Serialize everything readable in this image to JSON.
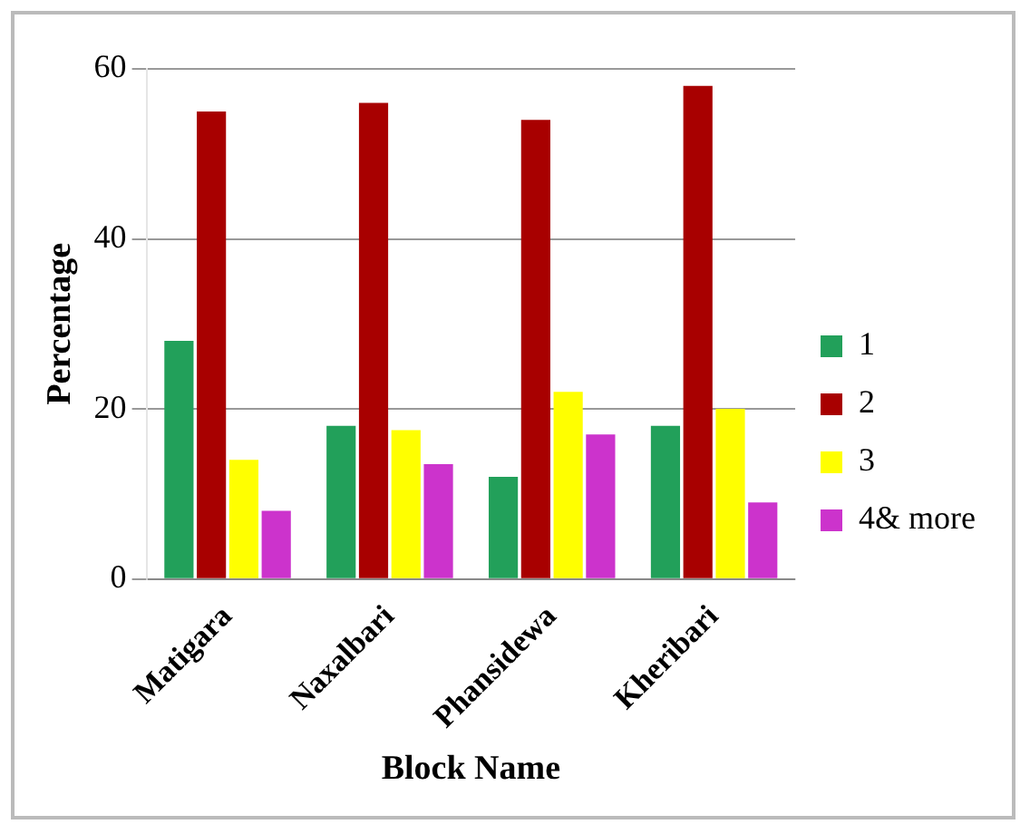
{
  "chart_data": {
    "type": "bar",
    "xlabel": "Block Name",
    "ylabel": "Percentage",
    "categories": [
      "Matigara",
      "Naxalbari",
      "Phansidewa",
      "Kheribari"
    ],
    "series": [
      {
        "name": "1",
        "color": "#22a05a",
        "values": [
          28,
          18,
          12,
          18
        ]
      },
      {
        "name": "2",
        "color": "#a80000",
        "values": [
          55,
          56,
          54,
          58
        ]
      },
      {
        "name": "3",
        "color": "#ffff00",
        "values": [
          14,
          17.5,
          22,
          20
        ]
      },
      {
        "name": "4& more",
        "color": "#cc33cc",
        "values": [
          8,
          13.5,
          17,
          9
        ]
      }
    ],
    "ylim": [
      0,
      60
    ],
    "yticks": [
      0,
      20,
      40,
      60
    ],
    "grid": "y",
    "legend": "right"
  }
}
